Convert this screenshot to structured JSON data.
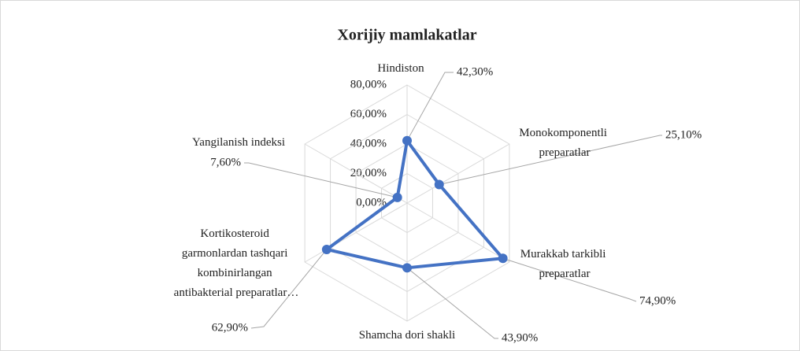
{
  "chart_data": {
    "type": "radar",
    "title": "Xorijiy mamlakatlar",
    "categories": [
      "Hindiston",
      "Monokomponentli preparatlar",
      "Murakkab tarkibli preparatlar",
      "Shamcha dori shakli",
      "Kortikosteroid garmonlardan tashqari kombinirlangan antibakterial preparatlar…",
      "Yangilanish indeksi"
    ],
    "values": [
      42.3,
      25.1,
      74.9,
      43.9,
      62.9,
      7.6
    ],
    "value_labels": [
      "42,30%",
      "25,10%",
      "74,90%",
      "43,90%",
      "62,90%",
      "7,60%"
    ],
    "color": "#4472c4",
    "rlim": [
      0,
      80
    ],
    "rticks": [
      {
        "value": 0,
        "label": "0,00%"
      },
      {
        "value": 20,
        "label": "20,00%"
      },
      {
        "value": 40,
        "label": "40,00%"
      },
      {
        "value": 60,
        "label": "60,00%"
      },
      {
        "value": 80,
        "label": "80,00%"
      }
    ],
    "grid": true
  }
}
